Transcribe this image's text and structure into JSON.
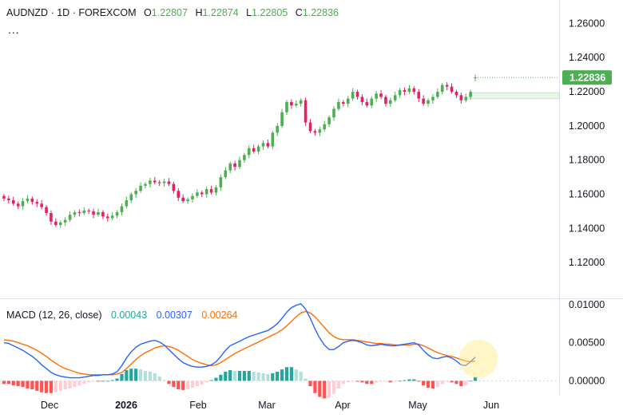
{
  "header": {
    "symbol": "AUDNZD",
    "interval": "1D",
    "source": "FOREXCOM",
    "open_label": "O",
    "open_value": "1.22807",
    "high_label": "H",
    "high_value": "1.22874",
    "low_label": "L",
    "low_value": "1.22805",
    "close_label": "C",
    "close_value": "1.22836",
    "more_label": "..."
  },
  "macd_legend": {
    "title": "MACD (12, 26, close)",
    "histogram_value": "0.00043",
    "macd_value": "0.00307",
    "signal_value": "0.00264"
  },
  "price_badge": "1.22836",
  "colors": {
    "up": "#4caf50",
    "down": "#e91e63",
    "macd_line": "#2962ff",
    "signal_line": "#ff6d00",
    "hist_pos_strong": "#26a69a",
    "hist_pos_weak": "#b2dfdb",
    "hist_neg_strong": "#ff5252",
    "hist_neg_weak": "#ffcdd2",
    "badge": "#4caf50"
  },
  "chart_data": [
    {
      "type": "candlestick",
      "price_axis": {
        "ylim": [
          1.1,
          1.27
        ],
        "ticks": [
          "1.26000",
          "1.24000",
          "1.22000",
          "1.20000",
          "1.18000",
          "1.16000",
          "1.14000",
          "1.12000"
        ]
      },
      "time_axis": {
        "labels": [
          "Dec",
          "2026",
          "Feb",
          "Mar",
          "Apr",
          "May",
          "Jun"
        ],
        "bold": [
          "2026"
        ]
      },
      "candles_close": [
        1.1575,
        1.1565,
        1.1545,
        1.153,
        1.156,
        1.1575,
        1.1555,
        1.1545,
        1.1525,
        1.149,
        1.144,
        1.142,
        1.1435,
        1.145,
        1.148,
        1.1495,
        1.149,
        1.1505,
        1.15,
        1.148,
        1.1495,
        1.147,
        1.146,
        1.1475,
        1.1495,
        1.153,
        1.1565,
        1.16,
        1.162,
        1.165,
        1.166,
        1.168,
        1.167,
        1.1665,
        1.1675,
        1.166,
        1.162,
        1.158,
        1.156,
        1.157,
        1.159,
        1.161,
        1.16,
        1.163,
        1.161,
        1.164,
        1.17,
        1.174,
        1.178,
        1.176,
        1.18,
        1.183,
        1.187,
        1.185,
        1.188,
        1.19,
        1.188,
        1.196,
        1.2,
        1.208,
        1.214,
        1.212,
        1.213,
        1.215,
        1.202,
        1.197,
        1.196,
        1.198,
        1.201,
        1.205,
        1.21,
        1.214,
        1.213,
        1.216,
        1.22,
        1.217,
        1.214,
        1.212,
        1.216,
        1.219,
        1.217,
        1.213,
        1.215,
        1.218,
        1.221,
        1.22,
        1.222,
        1.22,
        1.216,
        1.213,
        1.215,
        1.217,
        1.22,
        1.224,
        1.223,
        1.22,
        1.218,
        1.215,
        1.217,
        1.22,
        1.2284
      ],
      "candles_open": [
        1.159,
        1.1575,
        1.1565,
        1.1545,
        1.153,
        1.156,
        1.1575,
        1.1555,
        1.1545,
        1.1525,
        1.149,
        1.144,
        1.142,
        1.1435,
        1.145,
        1.148,
        1.1495,
        1.149,
        1.1505,
        1.15,
        1.148,
        1.1495,
        1.147,
        1.146,
        1.1475,
        1.1495,
        1.153,
        1.1565,
        1.16,
        1.162,
        1.165,
        1.166,
        1.168,
        1.167,
        1.1665,
        1.1675,
        1.166,
        1.162,
        1.158,
        1.156,
        1.157,
        1.159,
        1.161,
        1.16,
        1.163,
        1.161,
        1.164,
        1.17,
        1.174,
        1.178,
        1.176,
        1.18,
        1.183,
        1.187,
        1.185,
        1.188,
        1.19,
        1.188,
        1.196,
        1.2,
        1.208,
        1.214,
        1.212,
        1.213,
        1.215,
        1.202,
        1.197,
        1.196,
        1.198,
        1.201,
        1.205,
        1.21,
        1.214,
        1.213,
        1.216,
        1.22,
        1.217,
        1.214,
        1.212,
        1.216,
        1.219,
        1.217,
        1.213,
        1.215,
        1.218,
        1.221,
        1.22,
        1.222,
        1.22,
        1.216,
        1.213,
        1.215,
        1.217,
        1.22,
        1.224,
        1.223,
        1.22,
        1.218,
        1.215,
        1.217,
        1.2281
      ],
      "projection_zone": {
        "y_from": 1.216,
        "y_to": 1.2195
      }
    },
    {
      "type": "macd",
      "ylim": [
        -0.001,
        0.0105
      ],
      "ticks": [
        "0.01000",
        "0.00500",
        "0.00000"
      ],
      "macd": [
        0.005,
        0.0049,
        0.0046,
        0.0043,
        0.004,
        0.0036,
        0.0032,
        0.0027,
        0.0021,
        0.0016,
        0.0011,
        0.0008,
        0.0006,
        0.0005,
        0.0004,
        0.0004,
        0.0004,
        0.0005,
        0.0006,
        0.0007,
        0.0007,
        0.0008,
        0.0008,
        0.0009,
        0.0012,
        0.002,
        0.003,
        0.0038,
        0.0044,
        0.0048,
        0.005,
        0.0052,
        0.0053,
        0.0051,
        0.0047,
        0.0041,
        0.0035,
        0.0029,
        0.0024,
        0.0021,
        0.0019,
        0.0018,
        0.0018,
        0.0019,
        0.0021,
        0.0025,
        0.0032,
        0.004,
        0.0046,
        0.0049,
        0.0052,
        0.0055,
        0.0058,
        0.006,
        0.0062,
        0.0064,
        0.0066,
        0.007,
        0.0075,
        0.0082,
        0.009,
        0.0096,
        0.0099,
        0.0101,
        0.0094,
        0.0082,
        0.0068,
        0.0056,
        0.0047,
        0.0041,
        0.0041,
        0.0045,
        0.005,
        0.0052,
        0.0053,
        0.0052,
        0.005,
        0.0047,
        0.0046,
        0.0047,
        0.0048,
        0.0047,
        0.0046,
        0.0046,
        0.0047,
        0.0048,
        0.0049,
        0.005,
        0.0047,
        0.004,
        0.0034,
        0.003,
        0.0029,
        0.0031,
        0.0032,
        0.003,
        0.0026,
        0.0021,
        0.002,
        0.0025,
        0.0031
      ],
      "signal": [
        0.0054,
        0.0053,
        0.0052,
        0.005,
        0.0048,
        0.0046,
        0.0043,
        0.004,
        0.0036,
        0.0032,
        0.0027,
        0.0023,
        0.0019,
        0.0016,
        0.0014,
        0.0012,
        0.001,
        0.0009,
        0.0008,
        0.0008,
        0.0008,
        0.0008,
        0.0008,
        0.0008,
        0.0009,
        0.0011,
        0.0016,
        0.0022,
        0.0028,
        0.0033,
        0.0037,
        0.004,
        0.0043,
        0.0045,
        0.0046,
        0.0045,
        0.0043,
        0.004,
        0.0036,
        0.0032,
        0.0028,
        0.0025,
        0.0023,
        0.0021,
        0.002,
        0.0021,
        0.0024,
        0.0028,
        0.0032,
        0.0036,
        0.0039,
        0.0042,
        0.0045,
        0.0048,
        0.0051,
        0.0054,
        0.0057,
        0.006,
        0.0063,
        0.0067,
        0.0072,
        0.0078,
        0.0084,
        0.0089,
        0.0091,
        0.0089,
        0.0084,
        0.0077,
        0.007,
        0.0063,
        0.0058,
        0.0055,
        0.0054,
        0.0054,
        0.0054,
        0.0053,
        0.0052,
        0.0051,
        0.005,
        0.0049,
        0.0049,
        0.0048,
        0.0048,
        0.0047,
        0.0047,
        0.0047,
        0.0047,
        0.0048,
        0.0048,
        0.0046,
        0.0043,
        0.004,
        0.0037,
        0.0035,
        0.0033,
        0.0032,
        0.003,
        0.0028,
        0.0026,
        0.0025,
        0.0026
      ]
    }
  ]
}
